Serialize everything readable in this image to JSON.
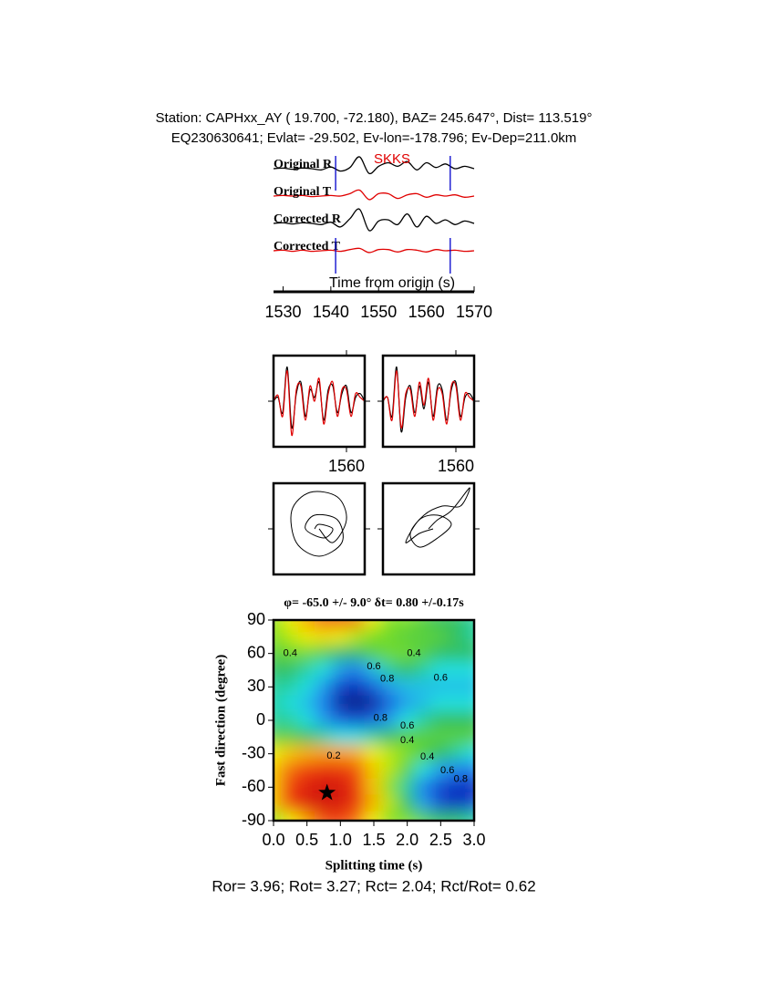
{
  "header": {
    "line1": "Station: CAPHxx_AY (  19.700,  -72.180), BAZ=  245.647°, Dist=  113.519°",
    "line2": "EQ230630641; Evlat= -29.502, Ev-lon=-178.796; Ev-Dep=211.0km"
  },
  "chart_data": [
    {
      "type": "traces",
      "xlabel": "Time from origin (s)",
      "phase": "SKKS",
      "phase_color": "#e00000",
      "xlim": [
        1528,
        1570
      ],
      "xticks": [
        1530,
        1540,
        1550,
        1560,
        1570
      ],
      "window": [
        1541,
        1565
      ],
      "window_color": "#0000cc",
      "x": [
        1528,
        1530,
        1532,
        1534,
        1536,
        1538,
        1540,
        1542,
        1544,
        1546,
        1548,
        1550,
        1552,
        1554,
        1556,
        1558,
        1560,
        1562,
        1564,
        1566,
        1568,
        1570
      ],
      "series": [
        {
          "name": "Original R",
          "color": "#000000",
          "values": [
            0,
            0.05,
            -0.05,
            0.05,
            0,
            -0.1,
            0.15,
            -0.2,
            0.1,
            1,
            -0.4,
            0.2,
            0.5,
            0.2,
            0.6,
            -0.1,
            0.5,
            0.1,
            0.4,
            0,
            0.2,
            0
          ]
        },
        {
          "name": "Original T",
          "color": "#e00000",
          "values": [
            0,
            0.05,
            0,
            0.05,
            -0.05,
            0,
            0.05,
            0,
            0.2,
            0.5,
            -0.3,
            0.2,
            0.2,
            -0.2,
            0.1,
            0.2,
            -0.1,
            0.1,
            0,
            0.1,
            -0.1,
            0
          ]
        },
        {
          "name": "Corrected R",
          "color": "#000000",
          "values": [
            0,
            0.05,
            -0.05,
            0.05,
            0,
            -0.1,
            0.1,
            -0.3,
            0.4,
            1.2,
            -0.6,
            0.2,
            0.3,
            -0.1,
            0.8,
            -0.3,
            0.6,
            0,
            0.3,
            -0.1,
            0.2,
            0
          ]
        },
        {
          "name": "Corrected T",
          "color": "#e00000",
          "values": [
            0,
            0.05,
            -0.05,
            0.05,
            -0.05,
            0,
            0.05,
            -0.05,
            0.1,
            0.2,
            -0.15,
            0.1,
            0.1,
            -0.1,
            0.1,
            0.05,
            -0.1,
            0.1,
            0,
            0.05,
            -0.05,
            0
          ]
        }
      ]
    },
    {
      "type": "waveforms",
      "xlim": [
        1552,
        1562
      ],
      "ylim": [
        -1.2,
        1.2
      ],
      "xticks": [
        1560
      ],
      "x": [
        1552,
        1552.5,
        1553,
        1553.5,
        1554,
        1554.5,
        1555,
        1555.5,
        1556,
        1556.5,
        1557,
        1557.5,
        1558,
        1558.5,
        1559,
        1559.5,
        1560,
        1560.5,
        1561,
        1561.5,
        1562
      ],
      "panels": [
        {
          "series": [
            {
              "color": "#000000",
              "values": [
                0,
                0.1,
                -0.3,
                0.9,
                -0.7,
                0.2,
                0.5,
                -0.4,
                0.3,
                0.1,
                0.5,
                -0.5,
                0.3,
                0.4,
                -0.3,
                0.2,
                0.4,
                -0.3,
                0.1,
                0.2,
                0
              ]
            },
            {
              "color": "#e00000",
              "values": [
                0,
                0.15,
                -0.4,
                0.8,
                -0.9,
                0.3,
                0.4,
                -0.5,
                0.4,
                0,
                0.6,
                -0.6,
                0.2,
                0.5,
                -0.4,
                0.3,
                0.3,
                -0.4,
                0.2,
                0.1,
                0
              ]
            }
          ]
        },
        {
          "series": [
            {
              "color": "#000000",
              "values": [
                0,
                0.1,
                -0.4,
                0.9,
                -0.8,
                0.1,
                0.4,
                -0.3,
                0.4,
                -0.2,
                0.5,
                -0.4,
                0.4,
                0.3,
                -0.5,
                0.3,
                0.5,
                -0.4,
                0.1,
                0.2,
                0
              ]
            },
            {
              "color": "#e00000",
              "values": [
                0,
                0.1,
                -0.5,
                0.8,
                -0.7,
                0.2,
                0.3,
                -0.4,
                0.5,
                -0.1,
                0.6,
                -0.5,
                0.3,
                0.2,
                -0.6,
                0.4,
                0.4,
                -0.5,
                0.2,
                0.1,
                0
              ]
            }
          ]
        }
      ]
    },
    {
      "type": "particle",
      "xlim": [
        -1,
        1
      ],
      "ylim": [
        -1,
        1
      ],
      "panels": [
        {
          "x": [
            0,
            0.3,
            0.6,
            0.4,
            -0.2,
            -0.6,
            -0.5,
            0,
            0.5,
            0.4,
            -0.1,
            -0.3,
            0.1,
            0.3,
            0,
            -0.1
          ],
          "y": [
            0,
            -0.3,
            0.2,
            0.7,
            0.8,
            0.4,
            -0.3,
            -0.6,
            -0.3,
            0.2,
            0.3,
            0,
            -0.2,
            0,
            0.1,
            0
          ]
        },
        {
          "x": [
            0,
            0.2,
            0.5,
            0.9,
            0.7,
            0.3,
            -0.1,
            -0.4,
            -0.2,
            0.2,
            0.5,
            0.2,
            -0.2,
            -0.5,
            -0.2,
            0.1
          ],
          "y": [
            0,
            0.2,
            0.4,
            0.9,
            0.5,
            0.5,
            0.3,
            -0.1,
            -0.4,
            -0.2,
            0.1,
            0.3,
            0.2,
            -0.3,
            -0.1,
            0
          ]
        }
      ]
    },
    {
      "type": "contour",
      "title": "φ= -65.0 +/- 9.0° δt= 0.80 +/-0.17s",
      "xlabel": "Splitting time (s)",
      "ylabel": "Fast direction (degree)",
      "xlim": [
        0,
        3
      ],
      "ylim": [
        -90,
        90
      ],
      "xticks": [
        {
          "value": 0,
          "label": "0.0"
        },
        0.5,
        {
          "value": 1,
          "label": "1.0"
        },
        1.5,
        {
          "value": 2,
          "label": "2.0"
        },
        2.5,
        {
          "value": 3,
          "label": "3.0"
        }
      ],
      "yticks": [
        -90,
        -60,
        -30,
        0,
        30,
        60,
        90
      ],
      "x": [
        0,
        0.25,
        0.5,
        0.75,
        1,
        1.25,
        1.5,
        1.75,
        2,
        2.25,
        2.5,
        2.75,
        3
      ],
      "y": [
        90,
        75,
        60,
        45,
        30,
        15,
        0,
        -15,
        -30,
        -45,
        -60,
        -75,
        -90
      ],
      "z": [
        [
          0.4,
          0.3,
          0.2,
          0.12,
          0.1,
          0.15,
          0.3,
          0.4,
          0.4,
          0.45,
          0.5,
          0.5,
          0.55
        ],
        [
          0.4,
          0.35,
          0.3,
          0.28,
          0.3,
          0.35,
          0.4,
          0.42,
          0.45,
          0.45,
          0.45,
          0.5,
          0.55
        ],
        [
          0.45,
          0.42,
          0.42,
          0.45,
          0.5,
          0.5,
          0.45,
          0.42,
          0.42,
          0.45,
          0.5,
          0.5,
          0.5
        ],
        [
          0.5,
          0.5,
          0.55,
          0.6,
          0.7,
          0.75,
          0.65,
          0.55,
          0.5,
          0.55,
          0.6,
          0.6,
          0.6
        ],
        [
          0.55,
          0.55,
          0.6,
          0.7,
          0.85,
          0.9,
          0.8,
          0.7,
          0.65,
          0.65,
          0.65,
          0.65,
          0.65
        ],
        [
          0.55,
          0.6,
          0.65,
          0.75,
          0.95,
          1,
          0.95,
          0.8,
          0.7,
          0.65,
          0.6,
          0.6,
          0.6
        ],
        [
          0.55,
          0.55,
          0.6,
          0.7,
          0.8,
          0.85,
          0.8,
          0.7,
          0.6,
          0.55,
          0.5,
          0.5,
          0.5
        ],
        [
          0.45,
          0.45,
          0.5,
          0.55,
          0.6,
          0.6,
          0.55,
          0.5,
          0.45,
          0.45,
          0.45,
          0.45,
          0.45
        ],
        [
          0.3,
          0.25,
          0.22,
          0.2,
          0.2,
          0.22,
          0.3,
          0.35,
          0.4,
          0.45,
          0.5,
          0.55,
          0.6
        ],
        [
          0.25,
          0.15,
          0.1,
          0.08,
          0.08,
          0.12,
          0.25,
          0.35,
          0.45,
          0.6,
          0.7,
          0.75,
          0.75
        ],
        [
          0.25,
          0.1,
          0.04,
          0.01,
          0.02,
          0.08,
          0.25,
          0.4,
          0.55,
          0.75,
          0.85,
          0.9,
          0.9
        ],
        [
          0.25,
          0.1,
          0.04,
          0.01,
          0.02,
          0.08,
          0.22,
          0.35,
          0.5,
          0.7,
          0.85,
          0.9,
          0.85
        ],
        [
          0.4,
          0.3,
          0.2,
          0.12,
          0.1,
          0.15,
          0.3,
          0.4,
          0.4,
          0.45,
          0.5,
          0.5,
          0.55
        ]
      ],
      "best": {
        "x": 0.8,
        "y": -65
      },
      "contour_labels": [
        {
          "label": "0.4",
          "x": 0.25,
          "y": 60
        },
        {
          "label": "0.4",
          "x": 2.1,
          "y": 60
        },
        {
          "label": "0.6",
          "x": 1.5,
          "y": 48
        },
        {
          "label": "0.8",
          "x": 1.7,
          "y": 37
        },
        {
          "label": "0.6",
          "x": 2.5,
          "y": 38
        },
        {
          "label": "0.8",
          "x": 1.6,
          "y": 2
        },
        {
          "label": "0.6",
          "x": 2.0,
          "y": -5
        },
        {
          "label": "0.4",
          "x": 2.0,
          "y": -18
        },
        {
          "label": "0.2",
          "x": 0.9,
          "y": -32
        },
        {
          "label": "0.4",
          "x": 2.3,
          "y": -33
        },
        {
          "label": "0.6",
          "x": 2.6,
          "y": -45
        },
        {
          "label": "0.8",
          "x": 2.8,
          "y": -53
        }
      ]
    }
  ],
  "footer": "Ror= 3.96; Rot= 3.27; Rct= 2.04; Rct/Rot= 0.62"
}
